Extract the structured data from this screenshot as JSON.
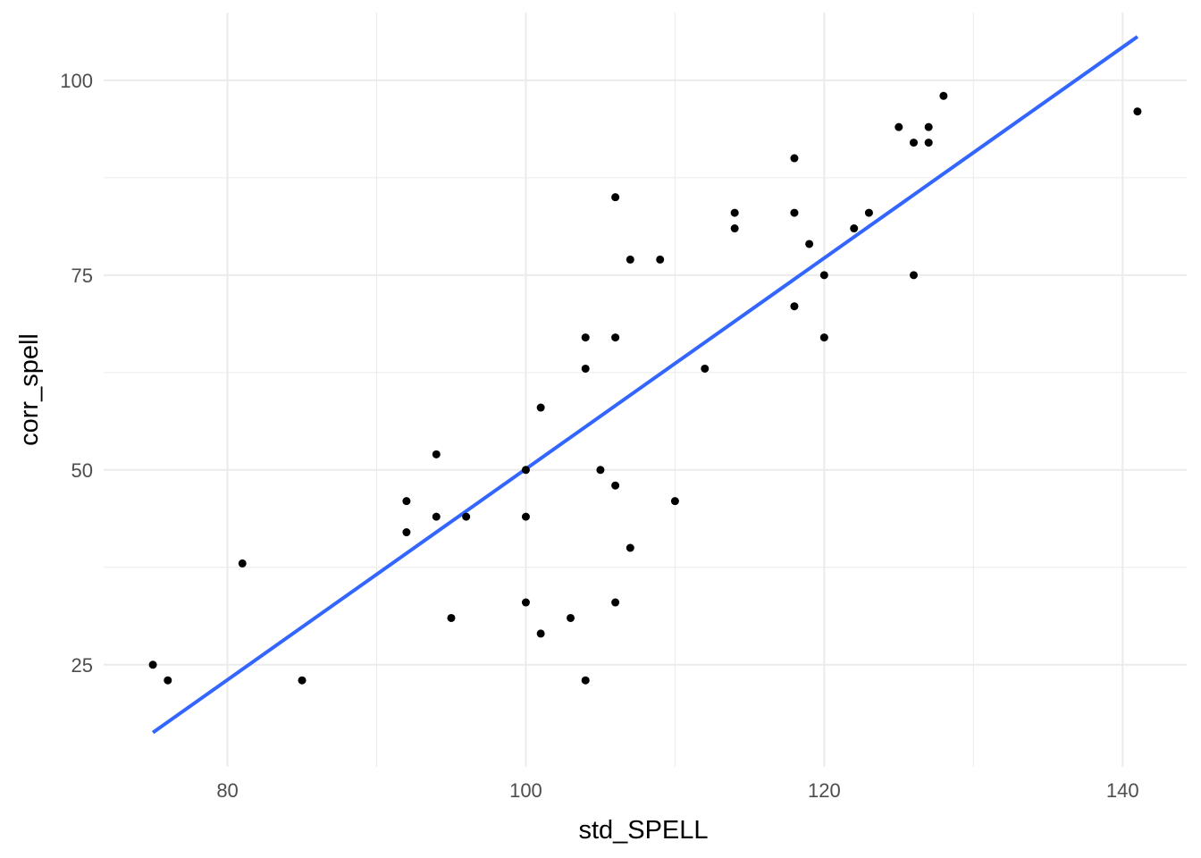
{
  "chart_data": {
    "type": "scatter",
    "title": "",
    "xlabel": "std_SPELL",
    "ylabel": "corr_spell",
    "xlim": [
      71.7,
      144.3
    ],
    "ylim": [
      11.9,
      108.7
    ],
    "x_ticks": [
      80,
      100,
      120,
      140
    ],
    "y_ticks": [
      25,
      50,
      75,
      100
    ],
    "x_minor": [
      90,
      110,
      130
    ],
    "y_minor": [
      37.5,
      62.5,
      87.5
    ],
    "grid": true,
    "legend": "none",
    "colors": {
      "points": "#000000",
      "trend": "#3366ff",
      "grid": "#ebebeb"
    },
    "points": [
      {
        "x": 75,
        "y": 25
      },
      {
        "x": 76,
        "y": 23
      },
      {
        "x": 81,
        "y": 38
      },
      {
        "x": 85,
        "y": 23
      },
      {
        "x": 92,
        "y": 46
      },
      {
        "x": 92,
        "y": 42
      },
      {
        "x": 94,
        "y": 52
      },
      {
        "x": 94,
        "y": 44
      },
      {
        "x": 95,
        "y": 31
      },
      {
        "x": 96,
        "y": 44
      },
      {
        "x": 100,
        "y": 50
      },
      {
        "x": 100,
        "y": 44
      },
      {
        "x": 100,
        "y": 33
      },
      {
        "x": 101,
        "y": 58
      },
      {
        "x": 101,
        "y": 29
      },
      {
        "x": 103,
        "y": 31
      },
      {
        "x": 104,
        "y": 67
      },
      {
        "x": 104,
        "y": 63
      },
      {
        "x": 104,
        "y": 23
      },
      {
        "x": 105,
        "y": 50
      },
      {
        "x": 106,
        "y": 85
      },
      {
        "x": 106,
        "y": 67
      },
      {
        "x": 106,
        "y": 48
      },
      {
        "x": 106,
        "y": 33
      },
      {
        "x": 107,
        "y": 77
      },
      {
        "x": 107,
        "y": 40
      },
      {
        "x": 109,
        "y": 77
      },
      {
        "x": 110,
        "y": 46
      },
      {
        "x": 112,
        "y": 63
      },
      {
        "x": 114,
        "y": 83
      },
      {
        "x": 114,
        "y": 81
      },
      {
        "x": 118,
        "y": 90
      },
      {
        "x": 118,
        "y": 83
      },
      {
        "x": 118,
        "y": 71
      },
      {
        "x": 119,
        "y": 79
      },
      {
        "x": 120,
        "y": 75
      },
      {
        "x": 120,
        "y": 67
      },
      {
        "x": 122,
        "y": 81
      },
      {
        "x": 123,
        "y": 83
      },
      {
        "x": 125,
        "y": 94
      },
      {
        "x": 126,
        "y": 92
      },
      {
        "x": 126,
        "y": 75
      },
      {
        "x": 127,
        "y": 94
      },
      {
        "x": 127,
        "y": 92
      },
      {
        "x": 128,
        "y": 98
      },
      {
        "x": 141,
        "y": 96
      }
    ],
    "trend_line": {
      "method": "linear",
      "x": [
        75,
        141
      ],
      "y": [
        16.3,
        105.6
      ]
    }
  }
}
